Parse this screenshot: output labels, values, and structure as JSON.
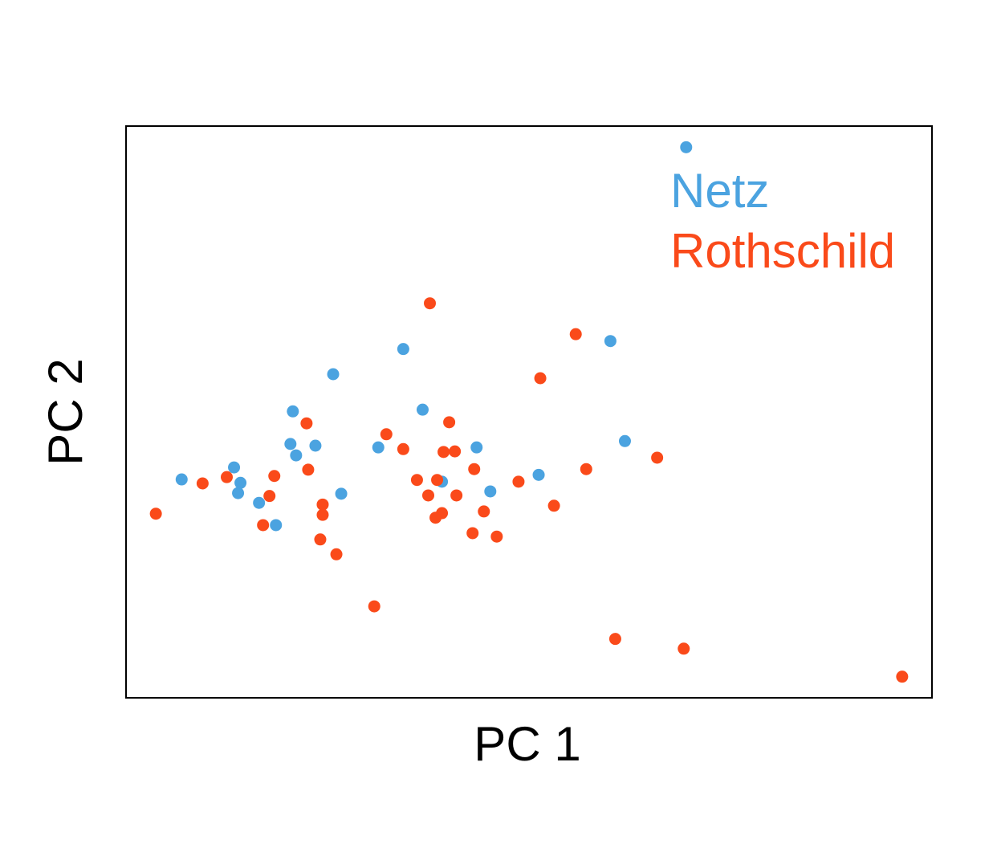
{
  "chart_data": {
    "type": "scatter",
    "xlabel": "PC 1",
    "ylabel": "PC 2",
    "xlim": [
      0,
      100
    ],
    "ylim": [
      0,
      100
    ],
    "legend": "top-right",
    "series": [
      {
        "name": "Netz",
        "color": "#4ba3e0",
        "x": [
          69.5,
          34.4,
          25.7,
          60.1,
          20.7,
          36.8,
          20.4,
          23.5,
          21.1,
          31.3,
          43.5,
          61.9,
          13.4,
          6.9,
          14.2,
          13.9,
          26.7,
          39.2,
          45.2,
          51.2,
          16.5,
          18.6
        ],
        "values": [
          96.3,
          61.0,
          56.6,
          62.4,
          50.1,
          50.4,
          44.4,
          44.1,
          42.4,
          43.8,
          43.8,
          44.9,
          40.3,
          38.2,
          37.6,
          35.8,
          35.7,
          37.8,
          36.1,
          39.0,
          34.1,
          30.2
        ]
      },
      {
        "name": "Rothschild",
        "color": "#fa4a1a",
        "x": [
          37.7,
          55.8,
          51.4,
          22.4,
          40.1,
          32.3,
          34.4,
          39.4,
          40.8,
          22.6,
          43.2,
          57.1,
          65.9,
          9.5,
          12.5,
          18.4,
          17.8,
          36.1,
          38.6,
          37.5,
          41.0,
          48.7,
          24.4,
          24.4,
          53.1,
          44.4,
          39.2,
          38.4,
          3.7,
          17.0,
          43.0,
          46.0,
          24.1,
          26.1,
          30.8,
          60.7,
          69.2,
          96.3
        ],
        "values": [
          69.0,
          63.6,
          55.9,
          48.0,
          48.2,
          46.1,
          43.5,
          43.0,
          43.1,
          39.9,
          40.0,
          40.0,
          42.0,
          37.5,
          38.6,
          38.8,
          35.3,
          38.1,
          38.1,
          35.4,
          35.4,
          37.8,
          33.8,
          32.0,
          33.6,
          32.6,
          32.3,
          31.5,
          32.2,
          30.2,
          28.8,
          28.2,
          27.7,
          25.1,
          16.0,
          10.3,
          8.6,
          3.7
        ]
      }
    ]
  }
}
